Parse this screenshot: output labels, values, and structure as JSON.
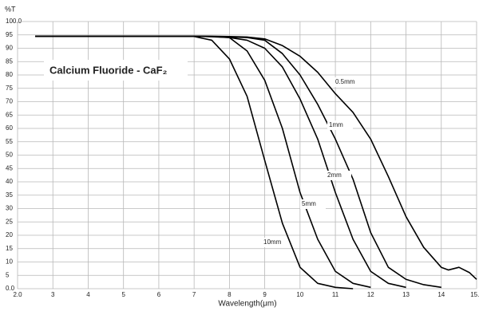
{
  "chart_data": {
    "type": "line",
    "title": "Calcium Fluoride - CaF₂",
    "x_label": "Wavelength(μm)",
    "y_label": "%T",
    "xlim": [
      2,
      15
    ],
    "ylim": [
      0,
      100
    ],
    "xticks": [
      {
        "value": 2,
        "label": "2.0"
      },
      3,
      4,
      5,
      6,
      7,
      8,
      9,
      10,
      11,
      12,
      13,
      14,
      {
        "value": 15,
        "label": "15.0"
      }
    ],
    "yticks": [
      {
        "value": 0,
        "label": "0.0"
      },
      5,
      10,
      15,
      20,
      25,
      30,
      35,
      40,
      45,
      50,
      55,
      60,
      65,
      70,
      75,
      80,
      85,
      90,
      95,
      {
        "value": 100,
        "label": "100.0"
      }
    ],
    "grid": true,
    "series": [
      {
        "name": "0.5mm",
        "color": "#000000",
        "x": [
          2.5,
          5,
          7,
          7.5,
          8,
          8.5,
          9,
          9.5,
          10,
          10.5,
          11,
          11.5,
          12,
          12.5,
          13,
          13.5,
          14,
          14.2,
          14.5,
          14.8,
          15
        ],
        "values": [
          94.5,
          94.5,
          94.5,
          94.5,
          94.4,
          94.2,
          93.5,
          91,
          87,
          81,
          73,
          66,
          56,
          42,
          27,
          15.5,
          8,
          7,
          8,
          6,
          3.5
        ]
      },
      {
        "name": "1mm",
        "color": "#000000",
        "x": [
          2.5,
          5,
          7,
          7.5,
          8,
          8.5,
          9,
          9.5,
          10,
          10.5,
          11,
          11.5,
          12,
          12.5,
          13,
          13.5,
          14
        ],
        "values": [
          94.5,
          94.5,
          94.5,
          94.4,
          94.2,
          94,
          93,
          88,
          80,
          69,
          56,
          41,
          21,
          8,
          3.5,
          1.5,
          0.5
        ]
      },
      {
        "name": "2mm",
        "color": "#000000",
        "x": [
          2.5,
          5,
          7,
          7.5,
          8,
          8.5,
          9,
          9.5,
          10,
          10.5,
          11,
          11.5,
          12,
          12.5,
          13
        ],
        "values": [
          94.5,
          94.5,
          94.5,
          94.4,
          94,
          93,
          90,
          83,
          71,
          56,
          36,
          18.5,
          6.5,
          2,
          0.5
        ]
      },
      {
        "name": "5mm",
        "color": "#000000",
        "x": [
          2.5,
          5,
          7,
          7.5,
          8,
          8.5,
          9,
          9.5,
          10,
          10.5,
          11,
          11.5,
          12
        ],
        "values": [
          94.5,
          94.5,
          94.5,
          94.3,
          94,
          89,
          78,
          60,
          36,
          18.5,
          6.5,
          2,
          0.5
        ]
      },
      {
        "name": "10mm",
        "color": "#000000",
        "x": [
          2.5,
          5,
          6.5,
          7,
          7.5,
          8,
          8.5,
          9,
          9.5,
          10,
          10.5,
          11,
          11.5
        ],
        "values": [
          94.5,
          94.5,
          94.5,
          94.4,
          93,
          86,
          72,
          48,
          24.5,
          8,
          2,
          0.5,
          0
        ]
      }
    ]
  }
}
